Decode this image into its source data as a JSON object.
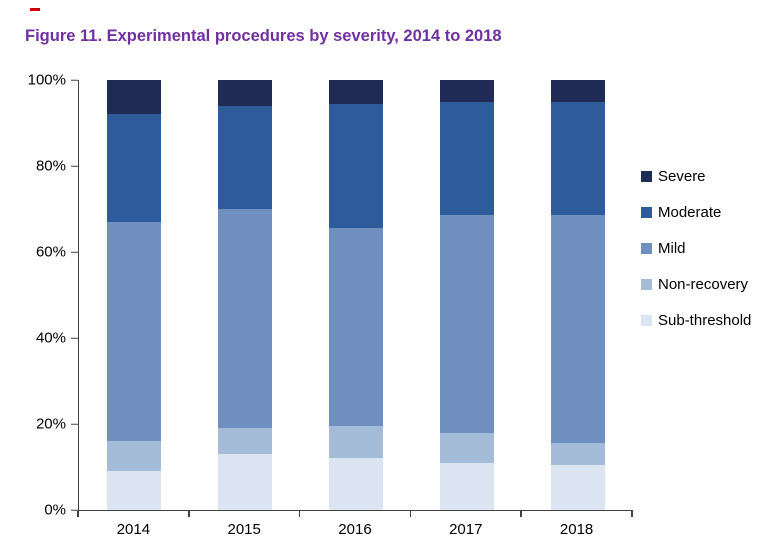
{
  "title": "Figure 11. Experimental procedures by severity, 2014 to 2018",
  "title_color": "#7030a0",
  "chart_data": {
    "type": "bar",
    "stacked": true,
    "title": "Figure 11. Experimental procedures by severity, 2014 to 2018",
    "categories": [
      "2014",
      "2015",
      "2016",
      "2017",
      "2018"
    ],
    "series": [
      {
        "name": "Sub-threshold",
        "color": "#dbe5f1",
        "values": [
          9,
          13,
          12,
          11,
          10.5
        ]
      },
      {
        "name": "Non-recovery",
        "color": "#a5bcd9",
        "values": [
          7,
          6,
          7.5,
          7,
          5
        ]
      },
      {
        "name": "Mild",
        "color": "#6f8fbf",
        "values": [
          51,
          51,
          46,
          50.5,
          53
        ]
      },
      {
        "name": "Moderate",
        "color": "#2e5b9c",
        "values": [
          25,
          24,
          29,
          26.5,
          26.5
        ]
      },
      {
        "name": "Severe",
        "color": "#1f2b54",
        "values": [
          8,
          6,
          5.5,
          5,
          5
        ]
      }
    ],
    "legend_order": [
      "Severe",
      "Moderate",
      "Mild",
      "Non-recovery",
      "Sub-threshold"
    ],
    "legend_position": "right",
    "xlabel": "",
    "ylabel": "",
    "ylim": [
      0,
      100
    ],
    "yticks": [
      "0%",
      "20%",
      "40%",
      "60%",
      "80%",
      "100%"
    ],
    "grid": false
  }
}
